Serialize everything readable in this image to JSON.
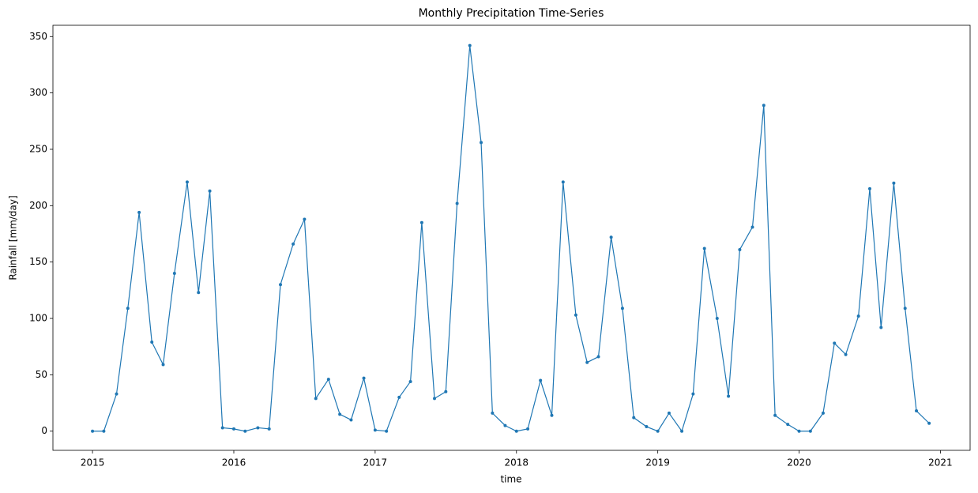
{
  "chart_data": {
    "type": "line",
    "title": "Monthly Precipitation Time-Series",
    "xlabel": "time",
    "ylabel": "Rainfall [mm/day]",
    "x": [
      2015,
      2015.08,
      2015.17,
      2015.25,
      2015.33,
      2015.42,
      2015.5,
      2015.58,
      2015.67,
      2015.75,
      2015.83,
      2015.92,
      2016,
      2016.08,
      2016.17,
      2016.25,
      2016.33,
      2016.42,
      2016.5,
      2016.58,
      2016.67,
      2016.75,
      2016.83,
      2016.92,
      2017,
      2017.08,
      2017.17,
      2017.25,
      2017.33,
      2017.42,
      2017.5,
      2017.58,
      2017.67,
      2017.75,
      2017.83,
      2017.92,
      2018,
      2018.08,
      2018.17,
      2018.25,
      2018.33,
      2018.42,
      2018.5,
      2018.58,
      2018.67,
      2018.75,
      2018.83,
      2018.92,
      2019,
      2019.08,
      2019.17,
      2019.25,
      2019.33,
      2019.42,
      2019.5,
      2019.58,
      2019.67,
      2019.75,
      2019.83,
      2019.92,
      2020,
      2020.08,
      2020.17,
      2020.25,
      2020.33,
      2020.42,
      2020.5,
      2020.58,
      2020.67,
      2020.75,
      2020.83,
      2020.92
    ],
    "series": [
      {
        "color": "#1f77b4",
        "values": [
          0,
          0,
          33,
          109,
          194,
          79,
          59,
          140,
          221,
          123,
          213,
          3,
          2,
          0,
          3,
          2,
          130,
          166,
          188,
          29,
          46,
          15,
          10,
          47,
          1,
          0,
          30,
          44,
          185,
          29,
          35,
          202,
          342,
          256,
          16,
          5,
          0,
          2,
          45,
          14,
          221,
          103,
          61,
          66,
          172,
          109,
          12,
          4,
          0,
          16,
          0,
          33,
          162,
          100,
          31,
          161,
          181,
          289,
          14,
          6,
          0,
          0,
          16,
          78,
          68,
          102,
          215,
          92,
          220,
          109,
          18,
          7
        ]
      }
    ],
    "xlim": [
      2014.72,
      2021.21
    ],
    "xticks": [
      2015,
      2016,
      2017,
      2018,
      2019,
      2020,
      2021
    ],
    "ylim": [
      -17,
      360
    ],
    "yticks": [
      0,
      50,
      100,
      150,
      200,
      250,
      300,
      350
    ]
  }
}
